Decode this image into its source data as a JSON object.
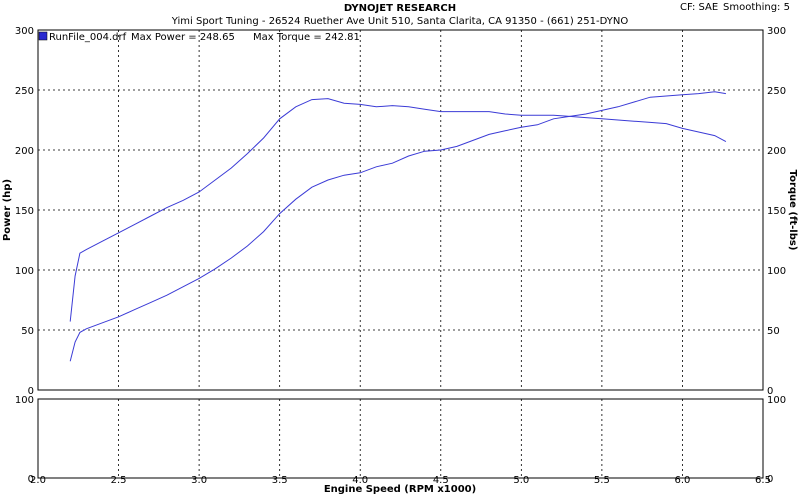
{
  "header": {
    "title": "DYNOJET RESEARCH",
    "subtitle": "Yimi Sport Tuning - 26524 Ruether Ave Unit 510, Santa Clarita, CA 91350 - (661) 251-DYNO",
    "cf_label": "CF: SAE",
    "smoothing_label": "Smoothing: 5"
  },
  "chart_data": {
    "type": "line",
    "xlabel": "Engine Speed (RPM x1000)",
    "ylabel": "Power (hp)",
    "y2label": "Torque (ft-lbs)",
    "xlim": [
      2.0,
      6.5
    ],
    "ylim": [
      0,
      300
    ],
    "y2lim": [
      0,
      300
    ],
    "x_ticks": [
      "2.0",
      "2.5",
      "3.0",
      "3.5",
      "4.0",
      "4.5",
      "5.0",
      "5.5",
      "6.0",
      "6.5"
    ],
    "y_ticks": [
      "0",
      "50",
      "100",
      "150",
      "200",
      "250",
      "300"
    ],
    "y2_ticks": [
      "0",
      "50",
      "100",
      "150",
      "200",
      "250",
      "300"
    ],
    "grid": true,
    "legend": {
      "placement": "top-left",
      "entries": [
        {
          "file": "RunFile_004.drf",
          "power_label": "Max Power = 248.65",
          "torque_label": "Max Torque = 242.81",
          "color": "#3b3bd6"
        }
      ]
    },
    "series": [
      {
        "name": "Power",
        "color": "#3b3bd6",
        "x": [
          2.2,
          2.23,
          2.26,
          2.3,
          2.4,
          2.5,
          2.6,
          2.7,
          2.8,
          2.9,
          3.0,
          3.1,
          3.2,
          3.3,
          3.4,
          3.5,
          3.6,
          3.7,
          3.8,
          3.9,
          4.0,
          4.1,
          4.2,
          4.3,
          4.4,
          4.5,
          4.6,
          4.7,
          4.8,
          4.9,
          5.0,
          5.1,
          5.2,
          5.3,
          5.4,
          5.5,
          5.6,
          5.7,
          5.8,
          5.9,
          6.0,
          6.1,
          6.2,
          6.27
        ],
        "values": [
          24,
          40,
          48,
          51,
          56,
          61,
          67,
          73,
          79,
          86,
          93,
          101,
          110,
          120,
          132,
          147,
          159,
          169,
          175,
          179,
          181,
          186,
          189,
          195,
          199,
          200,
          203,
          208,
          213,
          216,
          219,
          221,
          226,
          228,
          230,
          233,
          236,
          240,
          244,
          245,
          246,
          247,
          248.6,
          247
        ]
      },
      {
        "name": "Torque",
        "color": "#3b3bd6",
        "x": [
          2.2,
          2.23,
          2.26,
          2.3,
          2.4,
          2.5,
          2.6,
          2.7,
          2.8,
          2.9,
          3.0,
          3.1,
          3.2,
          3.3,
          3.4,
          3.5,
          3.6,
          3.7,
          3.8,
          3.9,
          4.0,
          4.1,
          4.2,
          4.3,
          4.4,
          4.5,
          4.6,
          4.7,
          4.8,
          4.9,
          5.0,
          5.1,
          5.2,
          5.3,
          5.4,
          5.5,
          5.6,
          5.7,
          5.8,
          5.9,
          6.0,
          6.1,
          6.2,
          6.27
        ],
        "values": [
          57,
          95,
          114,
          117,
          124,
          131,
          138,
          145,
          152,
          158,
          165,
          175,
          185,
          197,
          210,
          226,
          236,
          242,
          242.8,
          239,
          238,
          236,
          237,
          236,
          234,
          232,
          232,
          232,
          232,
          230,
          229,
          229,
          229,
          228,
          227,
          226,
          225,
          224,
          223,
          222,
          218,
          215,
          212,
          207
        ]
      }
    ]
  },
  "lower_panel": {
    "ylim": [
      0,
      100
    ],
    "y_ticks": [
      "0",
      "100"
    ],
    "y2_ticks": [
      "0",
      "100"
    ]
  }
}
